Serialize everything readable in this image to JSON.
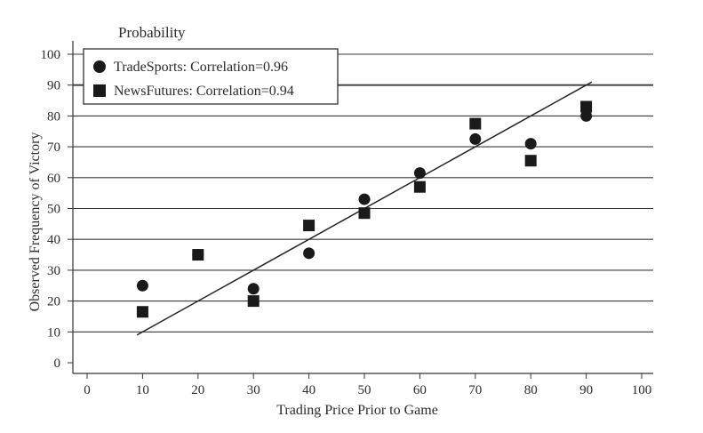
{
  "chart_data": {
    "type": "scatter",
    "title": "Probability",
    "xlabel": "Trading Price Prior to Game",
    "ylabel": "Observed Frequency of Victory",
    "xlim": [
      0,
      100
    ],
    "ylim": [
      0,
      100
    ],
    "xticks": [
      "0",
      "10",
      "20",
      "30",
      "40",
      "50",
      "60",
      "70",
      "80",
      "90",
      "100"
    ],
    "yticks": [
      "0",
      "10",
      "20",
      "30",
      "40",
      "50",
      "60",
      "70",
      "80",
      "90",
      "100"
    ],
    "grid": "horizontal",
    "legend_position": "top-left",
    "series": [
      {
        "name": "TradeSports: Correlation=0.96",
        "marker": "circle",
        "color": "#1a1a1a",
        "points": [
          {
            "x": 10,
            "y": 25
          },
          {
            "x": 20,
            "y": 35
          },
          {
            "x": 30,
            "y": 24
          },
          {
            "x": 40,
            "y": 35.5
          },
          {
            "x": 50,
            "y": 53
          },
          {
            "x": 60,
            "y": 61.5
          },
          {
            "x": 70,
            "y": 72.5
          },
          {
            "x": 80,
            "y": 71
          },
          {
            "x": 90,
            "y": 80
          }
        ]
      },
      {
        "name": "NewsFutures: Correlation=0.94",
        "marker": "square",
        "color": "#1a1a1a",
        "points": [
          {
            "x": 10,
            "y": 16.5
          },
          {
            "x": 20,
            "y": 35
          },
          {
            "x": 30,
            "y": 20
          },
          {
            "x": 40,
            "y": 44.5
          },
          {
            "x": 50,
            "y": 48.5
          },
          {
            "x": 60,
            "y": 57
          },
          {
            "x": 70,
            "y": 77.5
          },
          {
            "x": 80,
            "y": 65.5
          },
          {
            "x": 90,
            "y": 83
          }
        ]
      }
    ],
    "reference_line": {
      "x": [
        9,
        91
      ],
      "y": [
        9,
        91
      ]
    }
  }
}
